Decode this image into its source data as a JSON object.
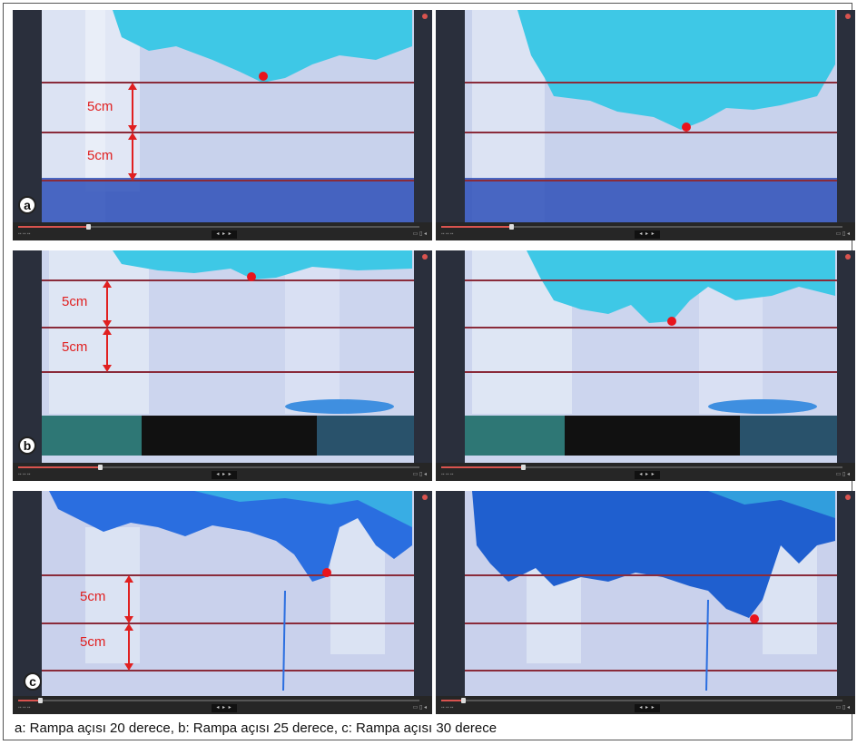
{
  "caption": "a: Rampa açısı 20 derece, b: Rampa açısı 25 derece, c: Rampa açısı 30 derece",
  "rows": [
    {
      "letter": "a",
      "labels": [
        "5cm",
        "5cm"
      ]
    },
    {
      "letter": "b",
      "labels": [
        "5cm",
        "5cm"
      ]
    },
    {
      "letter": "c",
      "labels": [
        "5cm",
        "5cm"
      ]
    }
  ],
  "colors": {
    "dye": "#3ec8e6",
    "dye_dark": "#1f5fcf",
    "water": "#c9d3ee",
    "marker": "#e8141c",
    "measure": "#e02020",
    "line": "#8a2b3a"
  },
  "icons": [
    "play-controls-icon",
    "volume-icon",
    "fullscreen-icon",
    "close-dot-icon"
  ],
  "video_progress": [
    0.17,
    0.17,
    0.2,
    0.2,
    0.05,
    0.05
  ]
}
